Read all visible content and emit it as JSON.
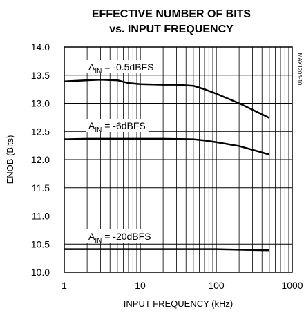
{
  "chart_data": {
    "type": "line",
    "title": "EFFECTIVE NUMBER OF BITS",
    "subtitle": "vs. INPUT FREQUENCY",
    "xlabel": "INPUT FREQUENCY (kHz)",
    "ylabel": "ENOB (Bits)",
    "xscale": "log",
    "xlim": [
      1,
      1000
    ],
    "ylim": [
      10.0,
      14.0
    ],
    "grid": true,
    "x_tick_labels": [
      "1",
      "10",
      "100",
      "1000"
    ],
    "y_tick_labels": [
      "10.0",
      "10.5",
      "11.0",
      "11.5",
      "12.0",
      "12.5",
      "13.0",
      "13.5",
      "14.0"
    ],
    "watermark": "MAX1205-10",
    "series": [
      {
        "name": "AIN = -0.5dBFS",
        "label_main": "A",
        "label_sub": "IN",
        "label_rest": " = -0.5dBFS",
        "x": [
          1,
          2,
          3,
          5,
          7,
          10,
          20,
          30,
          50,
          70,
          100,
          200,
          500
        ],
        "y": [
          13.39,
          13.41,
          13.42,
          13.41,
          13.36,
          13.34,
          13.33,
          13.33,
          13.31,
          13.25,
          13.17,
          13.0,
          12.74
        ]
      },
      {
        "name": "AIN = -6dBFS",
        "label_main": "A",
        "label_sub": "IN",
        "label_rest": " = -6dBFS",
        "x": [
          1,
          2,
          5,
          10,
          20,
          50,
          70,
          100,
          200,
          500
        ],
        "y": [
          12.36,
          12.37,
          12.37,
          12.37,
          12.37,
          12.36,
          12.34,
          12.31,
          12.24,
          12.09
        ]
      },
      {
        "name": "AIN = -20dBFS",
        "label_main": "A",
        "label_sub": "IN",
        "label_rest": " = -20dBFS",
        "x": [
          1,
          10,
          100,
          200,
          500
        ],
        "y": [
          10.41,
          10.41,
          10.41,
          10.4,
          10.39
        ]
      }
    ]
  }
}
